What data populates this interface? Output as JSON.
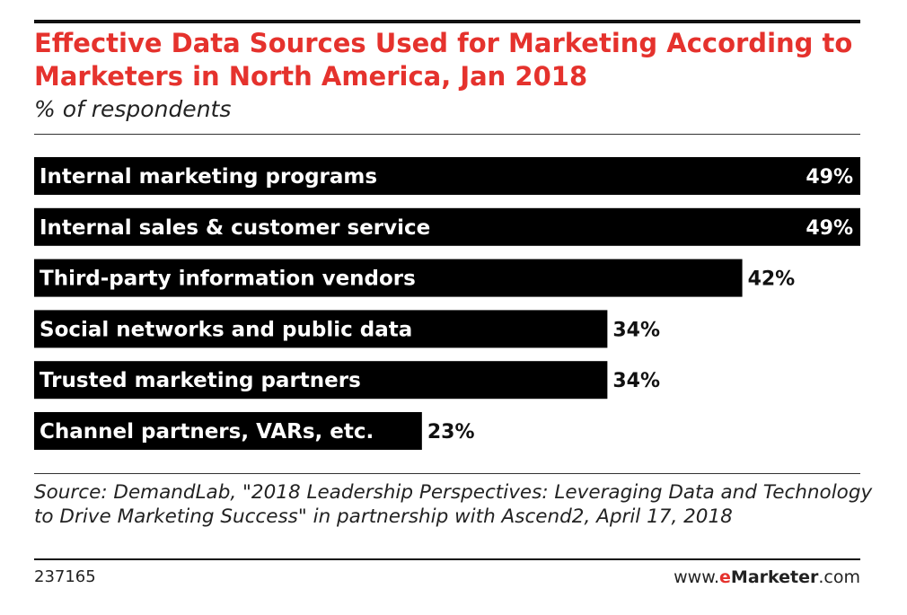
{
  "chart_data": {
    "type": "bar",
    "orientation": "horizontal",
    "title": "Effective Data Sources Used for Marketing According to Marketers in North America, Jan 2018",
    "subtitle": "% of respondents",
    "categories": [
      "Internal marketing programs",
      "Internal sales & customer service",
      "Third-party information vendors",
      "Social networks and public data",
      "Trusted marketing partners",
      "Channel partners, VARs, etc."
    ],
    "values": [
      49,
      49,
      42,
      34,
      34,
      23
    ],
    "value_labels": [
      "49%",
      "49%",
      "42%",
      "34%",
      "34%",
      "23%"
    ],
    "xlim": [
      0,
      49
    ],
    "grid": false,
    "legend": "none",
    "bar_color": "#000000"
  },
  "footer": {
    "source": "Source: DemandLab, \"2018 Leadership Perspectives: Leveraging Data and Technology to Drive Marketing Success\" in partnership with Ascend2, April 17, 2018",
    "chart_id": "237165",
    "brand_prefix": "www.",
    "brand_e": "e",
    "brand_name": "Marketer",
    "brand_suffix": ".com"
  },
  "colors": {
    "title": "#e5322d",
    "bar": "#000000",
    "bar_text": "#ffffff",
    "value_text": "#111111"
  }
}
